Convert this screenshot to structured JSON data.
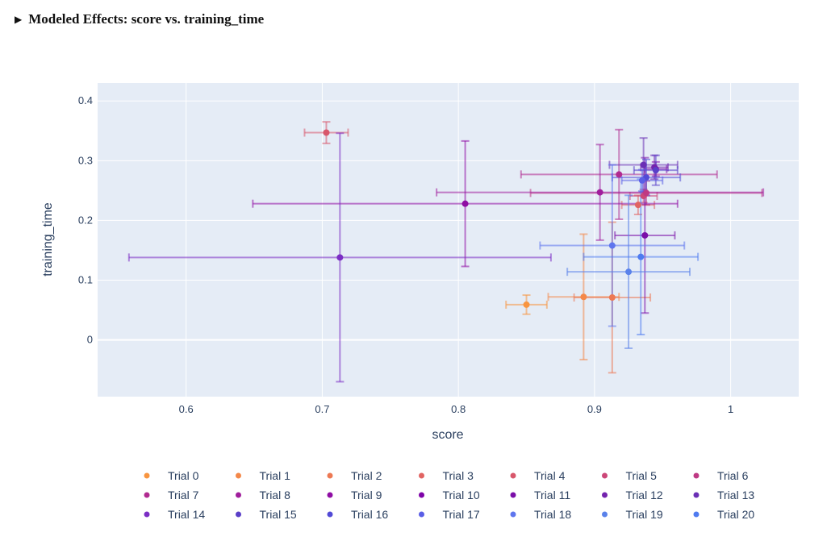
{
  "header": {
    "toggle_icon": "triangle-right-icon",
    "title": "Modeled Effects: score vs. training_time"
  },
  "chart_data": {
    "type": "scatter",
    "xlabel": "score",
    "ylabel": "training_time",
    "xlim": [
      0.535,
      1.05
    ],
    "ylim": [
      -0.095,
      0.43
    ],
    "x_ticks": [
      0.6,
      0.7,
      0.8,
      0.9,
      1
    ],
    "x_tick_labels": [
      "0.6",
      "0.7",
      "0.8",
      "0.9",
      "1"
    ],
    "y_ticks": [
      0,
      0.1,
      0.2,
      0.3,
      0.4
    ],
    "y_tick_labels": [
      "0",
      "0.1",
      "0.2",
      "0.3",
      "0.4"
    ],
    "grid": true,
    "legend_position": "bottom",
    "error_bars": true,
    "series": [
      {
        "name": "Trial 0",
        "color": "#f89540",
        "x": 0.85,
        "y": 0.059,
        "x_err": 0.015,
        "y_err": 0.016
      },
      {
        "name": "Trial 1",
        "color": "#f48849",
        "x": 0.892,
        "y": 0.072,
        "x_err": 0.026,
        "y_err": 0.105
      },
      {
        "name": "Trial 2",
        "color": "#ed7953",
        "x": 0.913,
        "y": 0.071,
        "x_err": 0.028,
        "y_err": 0.126
      },
      {
        "name": "Trial 3",
        "color": "#e16462",
        "x": 0.932,
        "y": 0.226,
        "x_err": 0.012,
        "y_err": 0.016
      },
      {
        "name": "Trial 4",
        "color": "#d8576b",
        "x": 0.703,
        "y": 0.347,
        "x_err": 0.016,
        "y_err": 0.018
      },
      {
        "name": "Trial 5",
        "color": "#cc4778",
        "x": 0.936,
        "y": 0.241,
        "x_err": 0.01,
        "y_err": 0.011
      },
      {
        "name": "Trial 6",
        "color": "#bf3984",
        "x": 0.938,
        "y": 0.246,
        "x_err": 0.085,
        "y_err": 0.02
      },
      {
        "name": "Trial 7",
        "color": "#b12a90",
        "x": 0.918,
        "y": 0.277,
        "x_err": 0.072,
        "y_err": 0.075
      },
      {
        "name": "Trial 8",
        "color": "#a01e9c",
        "x": 0.904,
        "y": 0.247,
        "x_err": 0.12,
        "y_err": 0.08
      },
      {
        "name": "Trial 9",
        "color": "#8f0da4",
        "x": 0.805,
        "y": 0.228,
        "x_err": 0.156,
        "y_err": 0.105
      },
      {
        "name": "Trial 10",
        "color": "#7e03a8",
        "x": 0.945,
        "y": 0.286,
        "x_err": 0.008,
        "y_err": 0.012
      },
      {
        "name": "Trial 11",
        "color": "#7a0ea8",
        "x": 0.937,
        "y": 0.175,
        "x_err": 0.022,
        "y_err": 0.13
      },
      {
        "name": "Trial 12",
        "color": "#7323ad",
        "x": 0.944,
        "y": 0.289,
        "x_err": 0.01,
        "y_err": 0.02
      },
      {
        "name": "Trial 13",
        "color": "#6a2fb5",
        "x": 0.936,
        "y": 0.293,
        "x_err": 0.025,
        "y_err": 0.045
      },
      {
        "name": "Trial 14",
        "color": "#7b2ec4",
        "x": 0.713,
        "y": 0.138,
        "x_err": 0.155,
        "y_err": 0.208
      },
      {
        "name": "Trial 15",
        "color": "#5a3fc8",
        "x": 0.945,
        "y": 0.284,
        "x_err": 0.016,
        "y_err": 0.025
      },
      {
        "name": "Trial 16",
        "color": "#524ad6",
        "x": 0.938,
        "y": 0.272,
        "x_err": 0.025,
        "y_err": 0.03
      },
      {
        "name": "Trial 17",
        "color": "#5a5ee6",
        "x": 0.935,
        "y": 0.267,
        "x_err": 0.015,
        "y_err": 0.018
      },
      {
        "name": "Trial 18",
        "color": "#5f76ee",
        "x": 0.913,
        "y": 0.158,
        "x_err": 0.053,
        "y_err": 0.135
      },
      {
        "name": "Trial 19",
        "color": "#5a82ea",
        "x": 0.925,
        "y": 0.114,
        "x_err": 0.045,
        "y_err": 0.128
      },
      {
        "name": "Trial 20",
        "color": "#4f7bf0",
        "x": 0.934,
        "y": 0.139,
        "x_err": 0.042,
        "y_err": 0.13
      }
    ]
  }
}
